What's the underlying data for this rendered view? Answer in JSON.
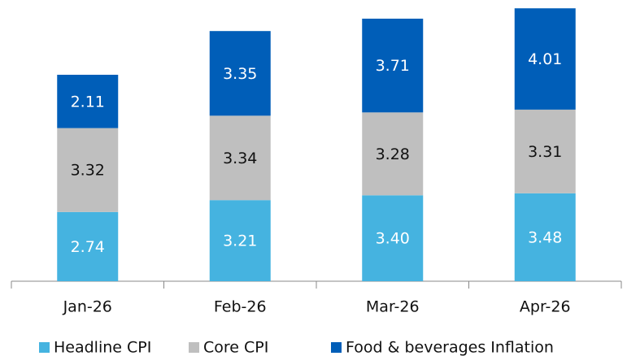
{
  "chart_data": {
    "type": "stacked_bar",
    "categories": [
      "Jan-26",
      "Feb-26",
      "Mar-26",
      "Apr-26"
    ],
    "series": [
      {
        "name": "Headline CPI",
        "color": "#45b3e0",
        "values": [
          2.74,
          3.21,
          3.4,
          3.48
        ],
        "value_labels": [
          "2.74",
          "3.21",
          "3.40",
          "3.48"
        ]
      },
      {
        "name": "Core CPI",
        "color": "#bfbfbf",
        "values": [
          3.32,
          3.34,
          3.28,
          3.31
        ],
        "value_labels": [
          "3.32",
          "3.34",
          "3.28",
          "3.31"
        ]
      },
      {
        "name": "Food & beverages Inflation",
        "color": "#005eb8",
        "values": [
          2.11,
          3.35,
          3.71,
          4.01
        ],
        "value_labels": [
          "2.11",
          "3.35",
          "3.71",
          "4.01"
        ]
      }
    ],
    "ylim": [
      0,
      11
    ]
  }
}
